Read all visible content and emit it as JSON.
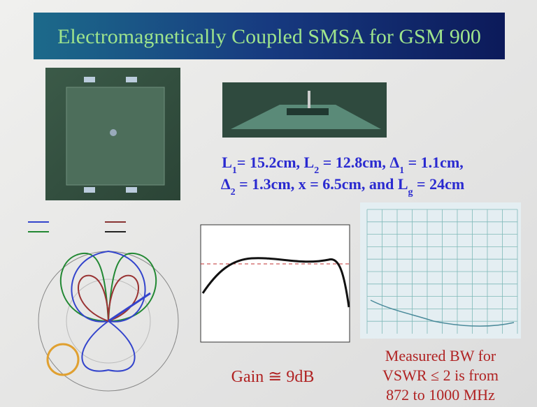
{
  "header": {
    "title": "Electromagnetically Coupled SMSA for GSM 900"
  },
  "params": {
    "line1": [
      "L",
      "1",
      "= 15.2cm, L",
      "2",
      " = 12.8cm, Δ",
      "1",
      " = 1.1cm,"
    ],
    "line2": [
      "Δ",
      "2",
      " = 1.3cm, x = 6.5cm, and L",
      "g",
      " = 24cm"
    ]
  },
  "gain_caption": "Gain ≅ 9dB",
  "bw_caption": [
    "Measured BW for",
    "VSWR ≤ 2 is from",
    "872 to 1000 MHz"
  ]
}
